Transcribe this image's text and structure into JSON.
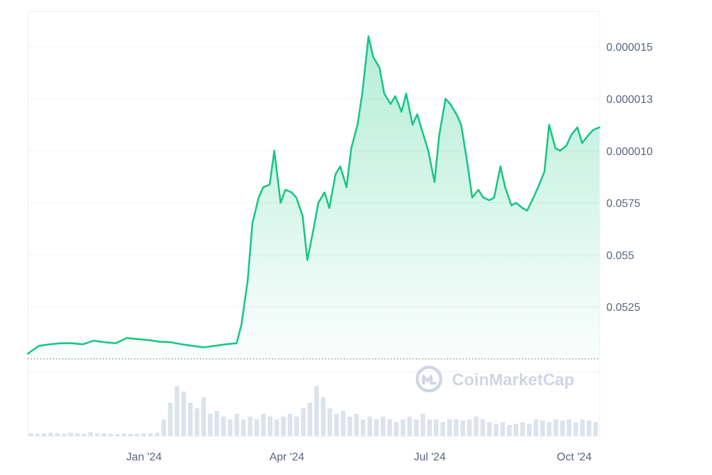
{
  "chart_data": {
    "type": "area",
    "title": "",
    "xlabel": "",
    "ylabel": "",
    "watermark": "CoinMarketCap",
    "x_ticks": [
      "Jan '24",
      "Apr '24",
      "Jul '24",
      "Oct '24"
    ],
    "y_ticks": [
      "0.000015",
      "0.000013",
      "0.000010",
      "0.0575",
      "0.055",
      "0.0525"
    ],
    "colors": {
      "line": "#16c784",
      "fill": "#16c784",
      "grid": "#eff2f5",
      "axis_text": "#58667e",
      "watermark": "#cfd6e4"
    },
    "series": [
      {
        "note_scale": "values are in tick-level units: 0=baseline, 1=0.0525, 2=0.055, 3=0.0575, 4=0.000010, 5=0.000013, 6=0.000015",
        "x": [
          "2023-10-19",
          "2023-10-26",
          "2023-11-02",
          "2023-11-09",
          "2023-11-16",
          "2023-11-23",
          "2023-11-30",
          "2023-12-07",
          "2023-12-14",
          "2023-12-21",
          "2023-12-28",
          "2024-01-04",
          "2024-01-11",
          "2024-01-18",
          "2024-01-25",
          "2024-02-01",
          "2024-02-08",
          "2024-02-15",
          "2024-02-22",
          "2024-02-29",
          "2024-03-03",
          "2024-03-07",
          "2024-03-10",
          "2024-03-14",
          "2024-03-17",
          "2024-03-21",
          "2024-03-24",
          "2024-03-28",
          "2024-03-31",
          "2024-04-04",
          "2024-04-07",
          "2024-04-11",
          "2024-04-14",
          "2024-04-18",
          "2024-04-21",
          "2024-04-25",
          "2024-04-28",
          "2024-05-02",
          "2024-05-05",
          "2024-05-09",
          "2024-05-12",
          "2024-05-16",
          "2024-05-19",
          "2024-05-23",
          "2024-05-26",
          "2024-05-30",
          "2024-06-02",
          "2024-06-06",
          "2024-06-09",
          "2024-06-13",
          "2024-06-16",
          "2024-06-20",
          "2024-06-23",
          "2024-06-27",
          "2024-06-30",
          "2024-07-04",
          "2024-07-07",
          "2024-07-11",
          "2024-07-14",
          "2024-07-18",
          "2024-07-21",
          "2024-07-25",
          "2024-07-28",
          "2024-08-01",
          "2024-08-04",
          "2024-08-08",
          "2024-08-11",
          "2024-08-15",
          "2024-08-18",
          "2024-08-22",
          "2024-08-25",
          "2024-08-29",
          "2024-09-01",
          "2024-09-05",
          "2024-09-08",
          "2024-09-12",
          "2024-09-15",
          "2024-09-19",
          "2024-09-22",
          "2024-09-26",
          "2024-09-29",
          "2024-10-03",
          "2024-10-06",
          "2024-10-10",
          "2024-10-13",
          "2024-10-17"
        ],
        "values": [
          0.1,
          0.25,
          0.28,
          0.3,
          0.3,
          0.28,
          0.35,
          0.32,
          0.3,
          0.4,
          0.38,
          0.36,
          0.33,
          0.32,
          0.28,
          0.25,
          0.22,
          0.25,
          0.28,
          0.3,
          0.65,
          1.5,
          2.6,
          3.1,
          3.3,
          3.35,
          4.0,
          3.0,
          3.25,
          3.2,
          3.1,
          2.75,
          1.9,
          2.5,
          3.0,
          3.2,
          2.9,
          3.55,
          3.7,
          3.3,
          4.05,
          4.5,
          5.1,
          6.2,
          5.8,
          5.6,
          5.1,
          4.9,
          5.05,
          4.75,
          5.1,
          4.5,
          4.7,
          4.3,
          4.0,
          3.4,
          4.3,
          5.0,
          4.9,
          4.7,
          4.5,
          3.75,
          3.1,
          3.25,
          3.1,
          3.05,
          3.1,
          3.7,
          3.3,
          2.95,
          3.0,
          2.9,
          2.85,
          3.1,
          3.3,
          3.6,
          4.5,
          4.05,
          4.0,
          4.1,
          4.3,
          4.45,
          4.15,
          4.3,
          4.4,
          4.45
        ]
      }
    ],
    "volume": [
      0.05,
      0.04,
      0.05,
      0.06,
      0.05,
      0.04,
      0.06,
      0.05,
      0.04,
      0.07,
      0.05,
      0.05,
      0.04,
      0.04,
      0.05,
      0.04,
      0.04,
      0.05,
      0.05,
      0.06,
      0.3,
      0.6,
      0.9,
      0.8,
      0.6,
      0.5,
      0.7,
      0.4,
      0.45,
      0.35,
      0.3,
      0.4,
      0.3,
      0.35,
      0.3,
      0.4,
      0.35,
      0.3,
      0.35,
      0.4,
      0.35,
      0.5,
      0.6,
      0.9,
      0.7,
      0.5,
      0.4,
      0.45,
      0.35,
      0.4,
      0.3,
      0.35,
      0.3,
      0.35,
      0.3,
      0.25,
      0.3,
      0.35,
      0.3,
      0.4,
      0.3,
      0.3,
      0.25,
      0.3,
      0.3,
      0.28,
      0.3,
      0.35,
      0.3,
      0.25,
      0.22,
      0.25,
      0.2,
      0.22,
      0.25,
      0.22,
      0.3,
      0.28,
      0.25,
      0.3,
      0.28,
      0.3,
      0.25,
      0.3,
      0.28,
      0.25
    ]
  }
}
